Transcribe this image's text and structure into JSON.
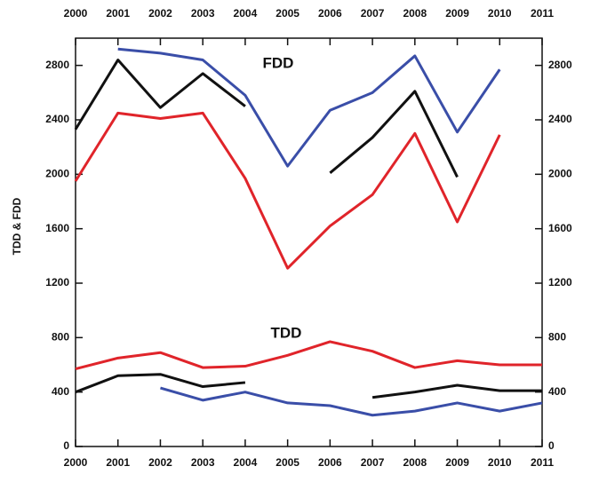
{
  "chart_data": {
    "type": "line",
    "y_label": "TDD & FDD",
    "annotations": [
      "FDD",
      "TDD"
    ],
    "x": [
      2000,
      2001,
      2002,
      2003,
      2004,
      2005,
      2006,
      2007,
      2008,
      2009,
      2010,
      2011
    ],
    "xlim": [
      2000,
      2011
    ],
    "xticks": [
      2000,
      2001,
      2002,
      2003,
      2004,
      2005,
      2006,
      2007,
      2008,
      2009,
      2010,
      2011
    ],
    "ylim": [
      0,
      3000
    ],
    "yticks": [
      0,
      400,
      800,
      1200,
      1600,
      2000,
      2400,
      2800
    ],
    "series": [
      {
        "color": "#3a4ea8",
        "values": [
          null,
          2920,
          2890,
          2840,
          2580,
          2060,
          2470,
          2600,
          2870,
          2310,
          2770,
          null
        ]
      },
      {
        "color": "#111111",
        "values": [
          2330,
          2840,
          2490,
          2740,
          2500,
          null,
          2010,
          2270,
          2610,
          1980,
          null,
          null
        ]
      },
      {
        "color": "#e0242a",
        "values": [
          1950,
          2450,
          2410,
          2450,
          1970,
          1310,
          1620,
          1850,
          2300,
          1650,
          2290,
          null
        ]
      },
      {
        "color": "#e0242a",
        "values": [
          570,
          650,
          690,
          580,
          590,
          670,
          770,
          700,
          580,
          630,
          600,
          600
        ]
      },
      {
        "color": "#111111",
        "values": [
          400,
          520,
          530,
          440,
          470,
          null,
          null,
          360,
          400,
          450,
          410,
          410
        ]
      },
      {
        "color": "#3a4ea8",
        "values": [
          null,
          null,
          430,
          340,
          400,
          320,
          300,
          230,
          260,
          320,
          260,
          320
        ]
      }
    ]
  }
}
